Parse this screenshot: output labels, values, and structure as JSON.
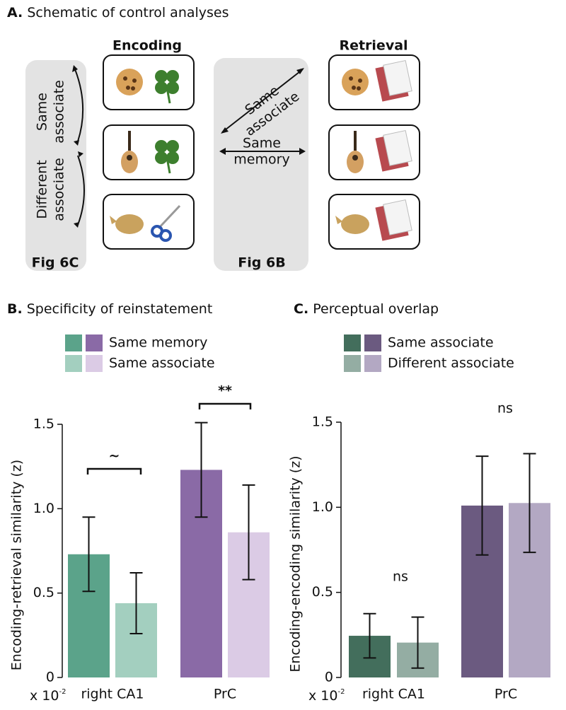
{
  "schematic": {
    "panel": "A.",
    "title": "Schematic of control analyses",
    "encoding": "Encoding",
    "retrieval": "Retrieval",
    "left_upper": [
      "Same",
      "associate"
    ],
    "left_lower": [
      "Different",
      "associate"
    ],
    "left_fig": "Fig 6C",
    "diagonal": [
      "Same",
      "associate"
    ],
    "horizontal": [
      "Same",
      "memory"
    ],
    "middle_fig": "Fig 6B"
  },
  "chart_data": [
    {
      "type": "bar",
      "panel": "B.",
      "title": "Specificity of reinstatement",
      "y_label": "Encoding-retrieval similarity (z)",
      "axis_multiplier": "x 10",
      "axis_multiplier_exp": "-2",
      "categories": [
        "right CA1",
        "PrC"
      ],
      "series": [
        {
          "name": "Same memory",
          "colors": [
            "#5ba38a",
            "#8a6aa6"
          ],
          "values": [
            0.73,
            1.23
          ],
          "errors": [
            0.22,
            0.28
          ]
        },
        {
          "name": "Same associate",
          "colors": [
            "#a3cfbf",
            "#dbcbe5"
          ],
          "values": [
            0.44,
            0.86
          ],
          "errors": [
            0.18,
            0.28
          ]
        }
      ],
      "annotations": [
        "~",
        "**"
      ],
      "ylim": [
        0,
        1.5
      ],
      "yticks": [
        0,
        0.5,
        {
          "value": 1.0,
          "label": "1.0"
        },
        1.5
      ]
    },
    {
      "type": "bar",
      "panel": "C.",
      "title": "Perceptual overlap",
      "y_label": "Encoding-encoding similarity (z)",
      "axis_multiplier": "x 10",
      "axis_multiplier_exp": "-2",
      "categories": [
        "right CA1",
        "PrC"
      ],
      "series": [
        {
          "name": "Same associate",
          "colors": [
            "#436e5c",
            "#6b5a80"
          ],
          "values": [
            0.245,
            1.01
          ],
          "errors": [
            0.13,
            0.29
          ]
        },
        {
          "name": "Different associate",
          "colors": [
            "#94ada3",
            "#b3a8c3"
          ],
          "values": [
            0.205,
            1.025
          ],
          "errors": [
            0.15,
            0.29
          ]
        }
      ],
      "annotations": [
        "ns",
        "ns"
      ],
      "ylim": [
        0,
        1.5
      ],
      "yticks": [
        0,
        0.5,
        {
          "value": 1.0,
          "label": "1.0"
        },
        1.5
      ]
    }
  ]
}
